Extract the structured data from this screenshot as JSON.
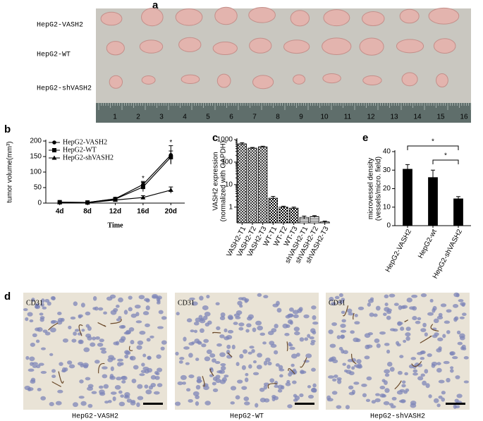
{
  "figure": {
    "panel_labels": [
      "a",
      "b",
      "c",
      "d",
      "e"
    ]
  },
  "photo_a": {
    "rows": [
      "HepG2-VASH2",
      "HepG2-WT",
      "HepG2-shVASH2"
    ],
    "ruler": [
      1,
      2,
      3,
      4,
      5,
      6,
      7,
      8,
      9,
      10,
      11,
      12,
      13,
      14,
      15,
      16
    ]
  },
  "photo_d": {
    "stain_labels": [
      "CD31",
      "CD31",
      "CD31"
    ],
    "captions": [
      "HepG2-VASH2",
      "HepG2-WT",
      "HepG2-shVASH2"
    ]
  },
  "chart_data": [
    {
      "type": "line",
      "xlabel": "Time",
      "ylabel": "tumor volume(mm³)",
      "categories": [
        "4d",
        "8d",
        "12d",
        "16d",
        "20d"
      ],
      "series": [
        {
          "name": "HepG2-VASH2",
          "color": "#000000",
          "marker": "circle",
          "values": [
            3,
            2,
            14,
            60,
            155
          ],
          "errors": [
            1,
            1,
            3,
            10,
            30
          ]
        },
        {
          "name": "HepG2-WT",
          "color": "#000000",
          "marker": "square",
          "values": [
            3,
            2,
            13,
            52,
            148
          ],
          "errors": [
            1,
            1,
            3,
            15,
            20
          ]
        },
        {
          "name": "HepG2-shVASH2",
          "color": "#000000",
          "marker": "triangle",
          "values": [
            2,
            1,
            10,
            18,
            42
          ],
          "errors": [
            1,
            1,
            2,
            6,
            10
          ]
        }
      ],
      "ylim": [
        0,
        200
      ],
      "yticks": [
        0,
        50,
        100,
        150,
        200
      ],
      "legend": "upper left",
      "annotations": [
        "*",
        "*"
      ]
    },
    {
      "type": "bar",
      "ylabel": [
        "VASH2 expression",
        "(normalized with GAPDH)"
      ],
      "categories": [
        "VASH2-T1",
        "VASH2-T2",
        "VASH2-T3",
        "WT-T1",
        "WT-T2",
        "WT-T3",
        "shVASH2-T1",
        "shVASH2-T2",
        "shVASH2-T3"
      ],
      "values": [
        650,
        420,
        480,
        2.5,
        1.0,
        0.9,
        0.35,
        0.38,
        0.22
      ],
      "errors": [
        80,
        30,
        30,
        0.5,
        0.1,
        0.1,
        0.05,
        0.04,
        0.02
      ],
      "ylim": [
        0.2,
        1000
      ],
      "yticks": [
        1,
        10,
        100,
        1000
      ],
      "log_scale": true,
      "color": "#000000"
    },
    {
      "type": "bar",
      "ylabel": [
        "microvessel density",
        "(vessels/micro. field)"
      ],
      "categories": [
        "HepG2-VASH2",
        "HepG2-wt",
        "HepG2-shVASH2"
      ],
      "values": [
        30.5,
        26,
        14.5
      ],
      "errors": [
        2.5,
        4,
        1.2
      ],
      "ylim": [
        0,
        40
      ],
      "yticks": [
        0,
        10,
        20,
        30,
        40
      ],
      "color": "#000000",
      "annotations": [
        "*",
        "*"
      ]
    }
  ]
}
